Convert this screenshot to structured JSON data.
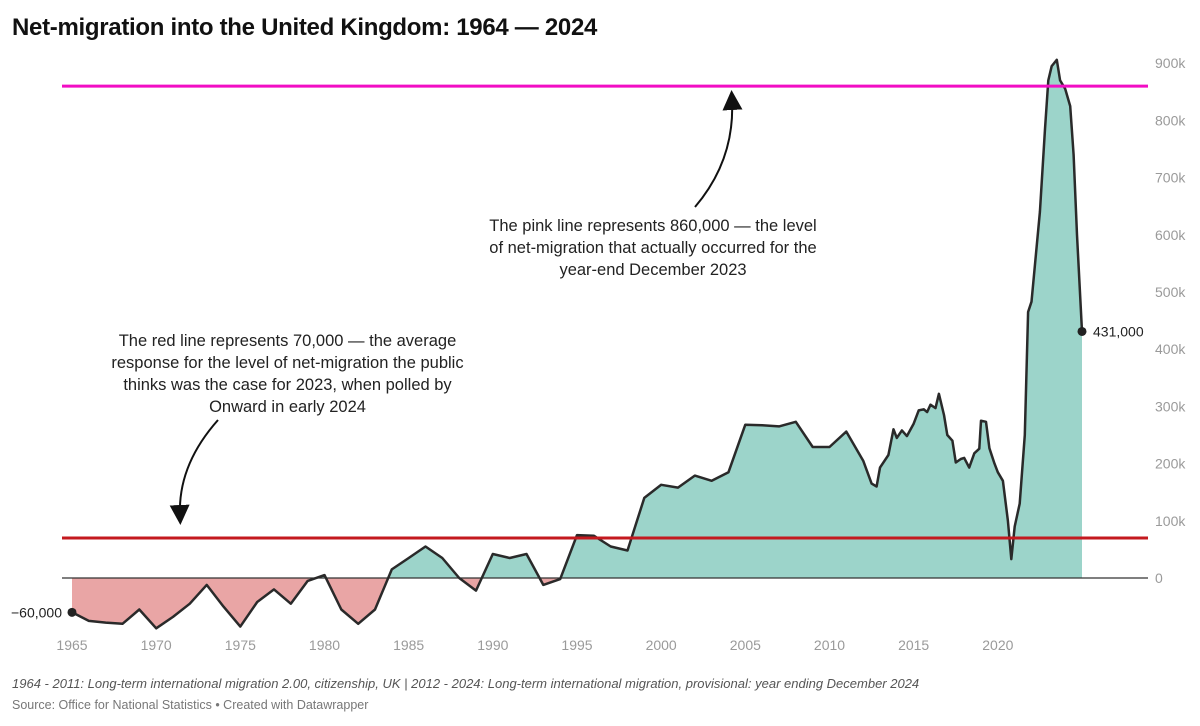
{
  "title": "Net-migration into the United Kingdom: 1964 — 2024",
  "chart_data": {
    "type": "area",
    "title": "Net-migration into the United Kingdom: 1964 — 2024",
    "xlabel": "",
    "ylabel": "",
    "xlim": [
      1965,
      2025
    ],
    "ylim": [
      -100000,
      900000
    ],
    "x_ticks": [
      1965,
      1970,
      1975,
      1980,
      1985,
      1990,
      1995,
      2000,
      2005,
      2010,
      2015,
      2020
    ],
    "y_ticks": [
      {
        "v": 0,
        "label": "0"
      },
      {
        "v": 100000,
        "label": "100k"
      },
      {
        "v": 200000,
        "label": "200k"
      },
      {
        "v": 300000,
        "label": "300k"
      },
      {
        "v": 400000,
        "label": "400k"
      },
      {
        "v": 500000,
        "label": "500k"
      },
      {
        "v": 600000,
        "label": "600k"
      },
      {
        "v": 700000,
        "label": "700k"
      },
      {
        "v": 800000,
        "label": "800k"
      },
      {
        "v": 900000,
        "label": "900k"
      }
    ],
    "series": [
      {
        "name": "Net migration",
        "x": [
          1965,
          1966,
          1967,
          1968,
          1969,
          1970,
          1971,
          1972,
          1973,
          1974,
          1975,
          1976,
          1977,
          1978,
          1979,
          1980,
          1981,
          1982,
          1983,
          1984,
          1985,
          1986,
          1987,
          1988,
          1989,
          1990,
          1991,
          1992,
          1993,
          1994,
          1995,
          1996,
          1997,
          1998,
          1999,
          2000,
          2001,
          2002,
          2003,
          2004,
          2005,
          2006,
          2007,
          2008,
          2009,
          2010,
          2011,
          2012,
          2012.5,
          2012.8,
          2013,
          2013.5,
          2013.8,
          2014,
          2014.3,
          2014.6,
          2015,
          2015.3,
          2015.6,
          2015.8,
          2016,
          2016.3,
          2016.5,
          2016.8,
          2017,
          2017.3,
          2017.5,
          2017.8,
          2018,
          2018.3,
          2018.6,
          2018.9,
          2019,
          2019.3,
          2019.5,
          2019.8,
          2020,
          2020.3,
          2020.6,
          2020.8,
          2021,
          2021.3,
          2021.6,
          2021.8,
          2022,
          2022.5,
          2022.8,
          2023,
          2023.2,
          2023.5,
          2023.7,
          2024,
          2024.3,
          2024.5,
          2024.7,
          2025
        ],
        "values": [
          -60000,
          -75000,
          -78000,
          -80000,
          -55000,
          -88000,
          -68000,
          -45000,
          -12000,
          -50000,
          -85000,
          -42000,
          -20000,
          -45000,
          -5000,
          5000,
          -55000,
          -80000,
          -55000,
          15000,
          35000,
          55000,
          35000,
          0,
          -22000,
          42000,
          35000,
          42000,
          -12000,
          -2000,
          75000,
          74000,
          55000,
          48000,
          140000,
          163000,
          158000,
          179000,
          170000,
          185000,
          268000,
          267000,
          265000,
          273000,
          229000,
          229000,
          256000,
          205000,
          165000,
          160000,
          193000,
          215000,
          260000,
          245000,
          258000,
          248000,
          270000,
          293000,
          295000,
          290000,
          303000,
          297000,
          322000,
          285000,
          250000,
          240000,
          202000,
          208000,
          210000,
          193000,
          218000,
          226000,
          275000,
          273000,
          227000,
          200000,
          185000,
          170000,
          100000,
          33000,
          90000,
          130000,
          250000,
          465000,
          483000,
          640000,
          785000,
          870000,
          895000,
          906000,
          870000,
          855000,
          825000,
          740000,
          600000,
          431000
        ]
      }
    ],
    "reference_lines": [
      {
        "name": "pink line",
        "value": 860000,
        "color": "#f20dc4"
      },
      {
        "name": "red line",
        "value": 70000,
        "color": "#c4191f"
      }
    ],
    "point_labels": [
      {
        "x": 1965,
        "value": -60000,
        "label": "−60,000"
      },
      {
        "x": 2025,
        "value": 431000,
        "label": "431,000"
      }
    ],
    "colors": {
      "positive": "#9cd4ca",
      "negative": "#e9a5a5",
      "line": "#2a2a2a"
    },
    "annotations": [
      "The pink line represents 860,000 — the level of net-migration that actually occurred for the year-end December 2023",
      "The red line represents 70,000 — the average response for the level of net-migration the public thinks was the case for 2023, when polled by Onward in early 2024"
    ]
  },
  "notes": "1964 - 2011: Long-term international migration 2.00, citizenship, UK | 2012 - 2024: Long-term international migration, provisional: year ending December 2024",
  "source": "Source: Office for National Statistics • Created with Datawrapper"
}
